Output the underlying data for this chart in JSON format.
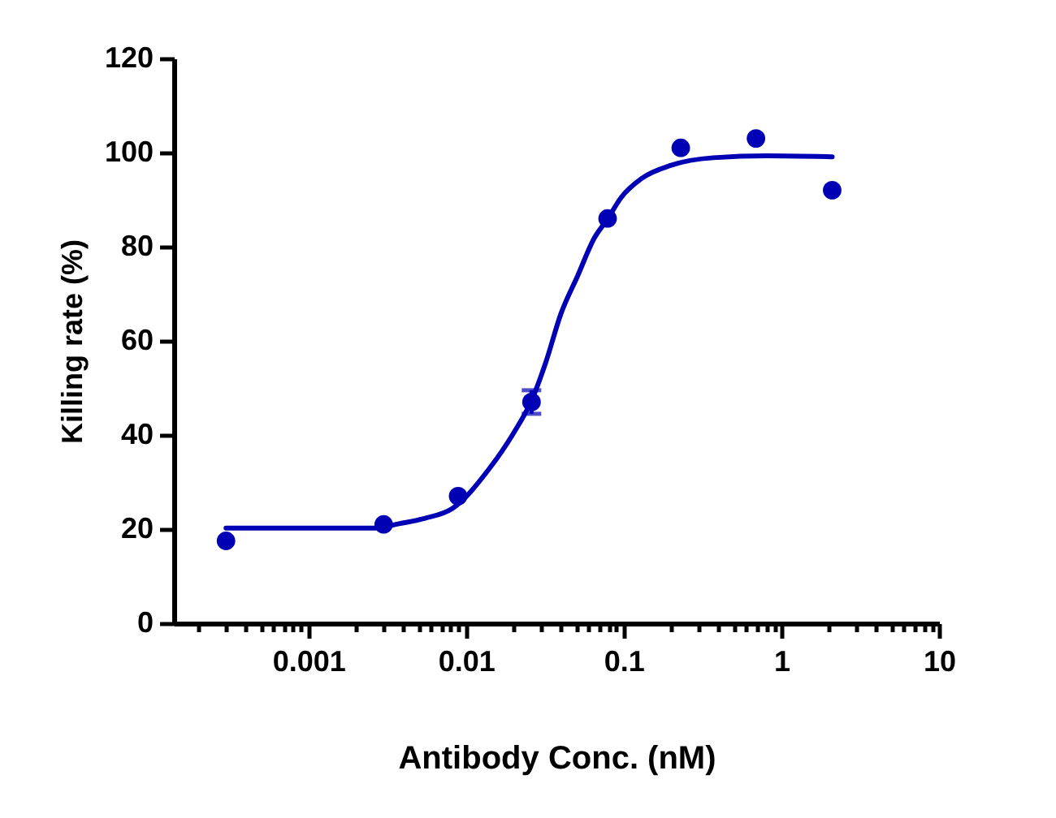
{
  "chart_data": {
    "type": "scatter",
    "xlabel": "Antibody Conc. (nM)",
    "ylabel": "Killing rate (%)",
    "log": "x",
    "grid": false,
    "xlim": [
      0.00014,
      10
    ],
    "xticks": [
      {
        "value": 0.0002,
        "label": null
      },
      {
        "value": 0.0003,
        "label": null
      },
      {
        "value": 0.0004,
        "label": null
      },
      {
        "value": 0.0005,
        "label": null
      },
      {
        "value": 0.0006,
        "label": null
      },
      {
        "value": 0.0007,
        "label": null
      },
      {
        "value": 0.0008,
        "label": null
      },
      {
        "value": 0.0009,
        "label": null
      },
      0.001,
      {
        "value": 0.002,
        "label": null
      },
      {
        "value": 0.003,
        "label": null
      },
      {
        "value": 0.004,
        "label": null
      },
      {
        "value": 0.005,
        "label": null
      },
      {
        "value": 0.006,
        "label": null
      },
      {
        "value": 0.007,
        "label": null
      },
      {
        "value": 0.008,
        "label": null
      },
      {
        "value": 0.009,
        "label": null
      },
      0.01,
      {
        "value": 0.02,
        "label": null
      },
      {
        "value": 0.03,
        "label": null
      },
      {
        "value": 0.04,
        "label": null
      },
      {
        "value": 0.05,
        "label": null
      },
      {
        "value": 0.06,
        "label": null
      },
      {
        "value": 0.07,
        "label": null
      },
      {
        "value": 0.08,
        "label": null
      },
      {
        "value": 0.09,
        "label": null
      },
      0.1,
      {
        "value": 0.2,
        "label": null
      },
      {
        "value": 0.3,
        "label": null
      },
      {
        "value": 0.4,
        "label": null
      },
      {
        "value": 0.5,
        "label": null
      },
      {
        "value": 0.6,
        "label": null
      },
      {
        "value": 0.7,
        "label": null
      },
      {
        "value": 0.8,
        "label": null
      },
      {
        "value": 0.9,
        "label": null
      },
      1,
      {
        "value": 2,
        "label": null
      },
      {
        "value": 3,
        "label": null
      },
      {
        "value": 4,
        "label": null
      },
      {
        "value": 5,
        "label": null
      },
      {
        "value": 6,
        "label": null
      },
      {
        "value": 7,
        "label": null
      },
      {
        "value": 8,
        "label": null
      },
      {
        "value": 9,
        "label": null
      },
      10
    ],
    "ylim": [
      0,
      120
    ],
    "yticks": [
      0,
      20,
      40,
      60,
      80,
      100,
      120
    ],
    "series": [
      {
        "color": "#0000b4",
        "marker": "circle",
        "x": [
          0.0003,
          0.003,
          0.0089,
          0.026,
          0.079,
          0.23,
          0.69,
          2.1
        ],
        "values": [
          17.5,
          21,
          27,
          47,
          86,
          101,
          103,
          92
        ],
        "errors": [
          null,
          null,
          null,
          2.5,
          null,
          null,
          null,
          null
        ]
      },
      {
        "type": "line",
        "color": "#0000b4",
        "line_style": "solid",
        "x": [
          0.0003,
          0.0027,
          0.0037,
          0.0055,
          0.0082,
          0.014,
          0.02,
          0.026,
          0.032,
          0.04,
          0.051,
          0.065,
          0.079,
          0.096,
          0.13,
          0.2,
          0.37,
          0.81,
          2.1
        ],
        "values": [
          20.2,
          20.2,
          21.1,
          22.3,
          24.4,
          32.8,
          40.4,
          47.3,
          55.4,
          65.8,
          73.8,
          81.8,
          85.9,
          90.4,
          94.5,
          97.3,
          98.9,
          99.3,
          99.1
        ]
      }
    ]
  }
}
